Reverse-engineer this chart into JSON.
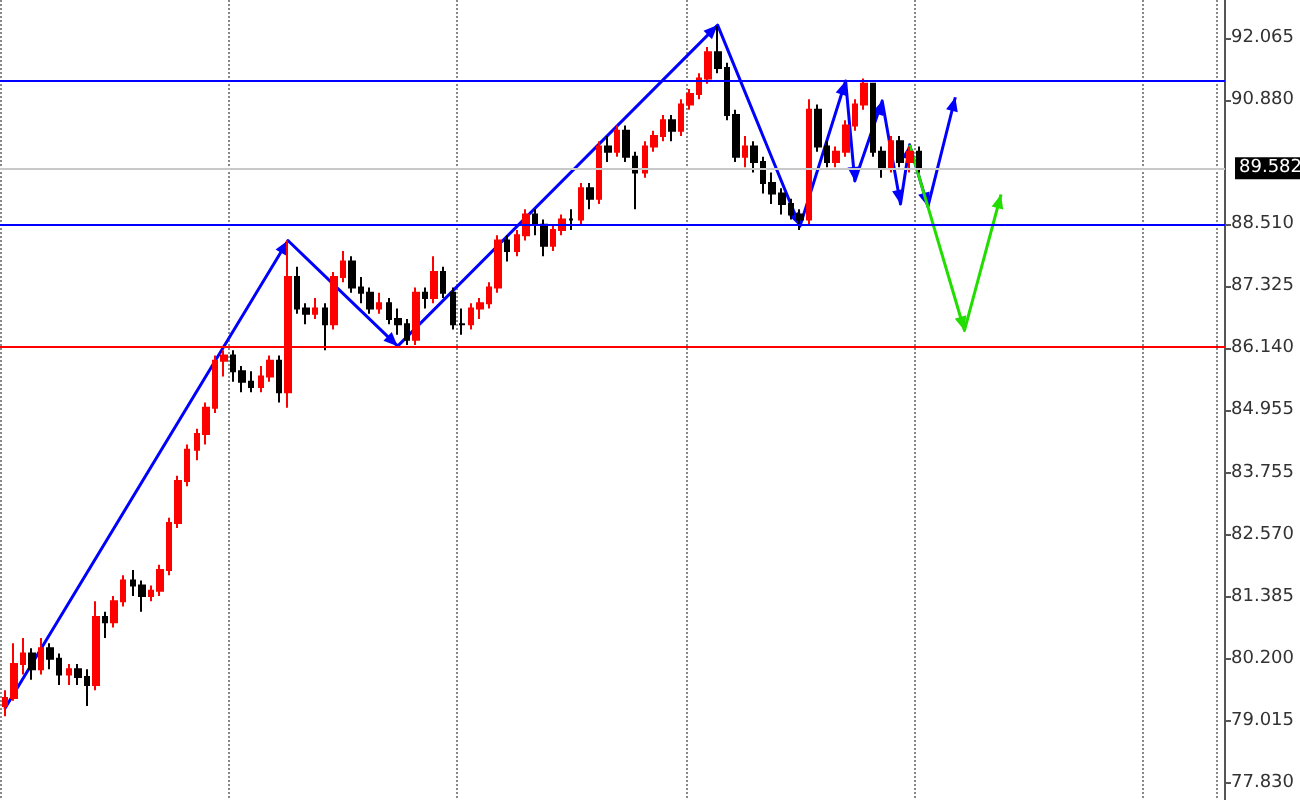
{
  "chart_data": {
    "type": "candlestick",
    "categories": [
      null,
      null,
      null,
      null,
      null,
      null,
      null,
      null,
      null,
      null,
      null,
      null,
      null,
      null,
      null,
      null,
      null,
      null,
      null,
      null,
      null,
      null,
      null,
      null,
      null,
      null,
      null,
      null,
      null,
      null,
      null,
      null,
      null,
      null,
      null,
      null,
      null,
      null,
      null,
      null,
      null,
      null,
      null,
      null,
      null,
      null,
      null,
      null,
      null,
      null,
      null,
      null,
      null,
      null,
      null,
      null,
      null,
      null,
      null,
      null,
      null,
      null,
      null,
      null,
      null,
      null,
      null,
      null,
      null,
      null,
      null,
      null,
      null,
      null,
      null,
      null,
      null,
      null,
      null,
      null,
      null,
      null,
      null,
      null,
      null,
      null,
      null,
      null,
      null,
      null,
      null,
      null,
      null,
      null,
      null,
      null,
      null,
      null,
      null,
      null,
      null,
      null,
      null,
      null,
      null,
      null,
      null,
      null,
      null,
      null,
      null,
      null,
      null,
      null,
      null,
      null,
      null,
      null,
      null,
      null,
      null,
      null,
      null,
      null,
      null,
      null,
      null,
      null,
      null,
      null,
      null,
      null,
      null,
      null
    ],
    "ohlc": [
      [
        79.3,
        79.6,
        79.1,
        79.45
      ],
      [
        79.45,
        80.5,
        79.4,
        80.1
      ],
      [
        80.1,
        80.6,
        79.9,
        80.3
      ],
      [
        80.3,
        80.4,
        79.8,
        80.0
      ],
      [
        80.0,
        80.6,
        79.9,
        80.4
      ],
      [
        80.4,
        80.5,
        80.0,
        80.2
      ],
      [
        80.2,
        80.3,
        79.7,
        79.9
      ],
      [
        79.9,
        80.1,
        79.7,
        80.0
      ],
      [
        80.0,
        80.1,
        79.7,
        79.85
      ],
      [
        79.85,
        80.0,
        79.3,
        79.7
      ],
      [
        79.7,
        81.3,
        79.6,
        81.0
      ],
      [
        81.0,
        81.1,
        80.6,
        80.9
      ],
      [
        80.9,
        81.4,
        80.8,
        81.3
      ],
      [
        81.3,
        81.8,
        81.2,
        81.7
      ],
      [
        81.7,
        81.9,
        81.4,
        81.6
      ],
      [
        81.6,
        81.7,
        81.1,
        81.4
      ],
      [
        81.4,
        81.6,
        81.3,
        81.5
      ],
      [
        81.5,
        82.0,
        81.4,
        81.9
      ],
      [
        81.9,
        82.9,
        81.8,
        82.8
      ],
      [
        82.8,
        83.7,
        82.7,
        83.6
      ],
      [
        83.6,
        84.3,
        83.5,
        84.2
      ],
      [
        84.2,
        84.6,
        84.0,
        84.5
      ],
      [
        84.5,
        85.1,
        84.3,
        85.0
      ],
      [
        85.0,
        86.0,
        84.9,
        85.9
      ],
      [
        85.9,
        86.1,
        85.6,
        86.0
      ],
      [
        86.0,
        86.1,
        85.5,
        85.7
      ],
      [
        85.7,
        85.8,
        85.3,
        85.5
      ],
      [
        85.5,
        85.7,
        85.3,
        85.4
      ],
      [
        85.4,
        85.8,
        85.3,
        85.6
      ],
      [
        85.6,
        86.0,
        85.5,
        85.9
      ],
      [
        85.9,
        86.0,
        85.1,
        85.3
      ],
      [
        85.3,
        88.2,
        85.0,
        87.5
      ],
      [
        87.5,
        87.7,
        86.8,
        86.9
      ],
      [
        86.9,
        87.0,
        86.6,
        86.8
      ],
      [
        86.8,
        87.1,
        86.7,
        86.9
      ],
      [
        86.9,
        87.0,
        86.1,
        86.6
      ],
      [
        86.6,
        87.6,
        86.5,
        87.5
      ],
      [
        87.5,
        88.0,
        87.4,
        87.8
      ],
      [
        87.8,
        87.9,
        87.2,
        87.3
      ],
      [
        87.3,
        87.5,
        87.0,
        87.2
      ],
      [
        87.2,
        87.3,
        86.8,
        86.9
      ],
      [
        86.9,
        87.2,
        86.8,
        87.0
      ],
      [
        87.0,
        87.1,
        86.6,
        86.7
      ],
      [
        86.7,
        86.9,
        86.4,
        86.6
      ],
      [
        86.6,
        86.7,
        86.2,
        86.3
      ],
      [
        86.3,
        87.3,
        86.2,
        87.2
      ],
      [
        87.2,
        87.3,
        86.9,
        87.1
      ],
      [
        87.1,
        87.9,
        87.0,
        87.6
      ],
      [
        87.6,
        87.7,
        87.1,
        87.2
      ],
      [
        87.2,
        87.3,
        86.5,
        86.6
      ],
      [
        86.6,
        86.9,
        86.4,
        86.6
      ],
      [
        86.6,
        87.0,
        86.5,
        86.9
      ],
      [
        86.9,
        87.1,
        86.7,
        87.0
      ],
      [
        87.0,
        87.4,
        86.9,
        87.3
      ],
      [
        87.3,
        88.3,
        87.2,
        88.2
      ],
      [
        88.2,
        88.3,
        87.8,
        88.0
      ],
      [
        88.0,
        88.4,
        87.9,
        88.3
      ],
      [
        88.3,
        88.8,
        88.2,
        88.7
      ],
      [
        88.7,
        88.8,
        88.3,
        88.5
      ],
      [
        88.5,
        88.6,
        87.9,
        88.1
      ],
      [
        88.1,
        88.5,
        88.0,
        88.4
      ],
      [
        88.4,
        88.7,
        88.3,
        88.6
      ],
      [
        88.6,
        88.8,
        88.4,
        88.6
      ],
      [
        88.6,
        89.3,
        88.5,
        89.2
      ],
      [
        89.2,
        89.3,
        88.8,
        89.0
      ],
      [
        89.0,
        90.1,
        88.9,
        90.0
      ],
      [
        90.0,
        90.2,
        89.7,
        89.9
      ],
      [
        89.9,
        90.4,
        89.8,
        90.3
      ],
      [
        90.3,
        90.4,
        89.7,
        89.8
      ],
      [
        89.8,
        89.9,
        88.8,
        89.5
      ],
      [
        89.5,
        90.1,
        89.4,
        90.0
      ],
      [
        90.0,
        90.3,
        89.9,
        90.2
      ],
      [
        90.2,
        90.6,
        90.1,
        90.5
      ],
      [
        90.5,
        90.6,
        90.1,
        90.3
      ],
      [
        90.3,
        90.9,
        90.2,
        90.8
      ],
      [
        90.8,
        91.1,
        90.7,
        91.0
      ],
      [
        91.0,
        91.4,
        90.9,
        91.3
      ],
      [
        91.3,
        91.9,
        91.2,
        91.8
      ],
      [
        91.8,
        92.3,
        91.4,
        91.5
      ],
      [
        91.5,
        91.6,
        90.5,
        90.6
      ],
      [
        90.6,
        90.7,
        89.7,
        89.8
      ],
      [
        89.8,
        90.2,
        89.6,
        90.0
      ],
      [
        90.0,
        90.1,
        89.5,
        89.7
      ],
      [
        89.7,
        89.8,
        89.1,
        89.3
      ],
      [
        89.3,
        89.5,
        88.9,
        89.1
      ],
      [
        89.1,
        89.2,
        88.7,
        88.9
      ],
      [
        88.9,
        89.0,
        88.6,
        88.7
      ],
      [
        88.7,
        88.8,
        88.4,
        88.6
      ],
      [
        88.6,
        90.9,
        88.5,
        90.7
      ],
      [
        90.7,
        90.8,
        89.9,
        90.0
      ],
      [
        90.0,
        90.1,
        89.6,
        89.7
      ],
      [
        89.7,
        90.0,
        89.6,
        89.9
      ],
      [
        89.9,
        90.5,
        89.8,
        90.4
      ],
      [
        90.4,
        90.9,
        90.3,
        90.8
      ],
      [
        90.8,
        91.3,
        90.7,
        91.2
      ],
      [
        91.2,
        91.2,
        89.8,
        89.9
      ],
      [
        89.9,
        90.0,
        89.4,
        89.6
      ],
      [
        89.6,
        90.2,
        89.5,
        90.1
      ],
      [
        90.1,
        90.2,
        89.6,
        89.7
      ],
      [
        89.7,
        90.0,
        89.5,
        89.9
      ],
      [
        89.9,
        90.0,
        89.5,
        89.58
      ],
      null,
      null,
      null,
      null,
      null,
      null,
      null,
      null,
      null,
      null,
      null,
      null,
      null,
      null,
      null,
      null,
      null,
      null,
      null,
      null,
      null,
      null,
      null,
      null,
      null,
      null,
      null,
      null,
      null,
      null,
      null,
      null,
      null
    ],
    "colors": [
      "#ff0000",
      "#ff0000",
      "#ff0000",
      "#000000",
      "#ff0000",
      "#000000",
      "#000000",
      "#ff0000",
      "#000000",
      "#000000",
      "#ff0000",
      "#000000",
      "#ff0000",
      "#ff0000",
      "#000000",
      "#000000",
      "#ff0000",
      "#ff0000",
      "#ff0000",
      "#ff0000",
      "#ff0000",
      "#ff0000",
      "#ff0000",
      "#ff0000",
      "#ff0000",
      "#000000",
      "#000000",
      "#000000",
      "#ff0000",
      "#ff0000",
      "#000000",
      "#ff0000",
      "#000000",
      "#000000",
      "#ff0000",
      "#000000",
      "#ff0000",
      "#ff0000",
      "#000000",
      "#000000",
      "#000000",
      "#ff0000",
      "#000000",
      "#000000",
      "#000000",
      "#ff0000",
      "#000000",
      "#ff0000",
      "#000000",
      "#000000",
      "#000000",
      "#ff0000",
      "#ff0000",
      "#ff0000",
      "#ff0000",
      "#000000",
      "#ff0000",
      "#ff0000",
      "#000000",
      "#000000",
      "#ff0000",
      "#ff0000",
      "#000000",
      "#ff0000",
      "#000000",
      "#ff0000",
      "#000000",
      "#ff0000",
      "#000000",
      "#000000",
      "#ff0000",
      "#ff0000",
      "#ff0000",
      "#000000",
      "#ff0000",
      "#ff0000",
      "#ff0000",
      "#ff0000",
      "#000000",
      "#000000",
      "#000000",
      "#ff0000",
      "#000000",
      "#000000",
      "#000000",
      "#000000",
      "#000000",
      "#000000",
      "#ff0000",
      "#000000",
      "#000000",
      "#ff0000",
      "#ff0000",
      "#ff0000",
      "#ff0000",
      "#000000",
      "#000000",
      "#ff0000",
      "#000000",
      "#ff0000",
      "#000000",
      null,
      null,
      null,
      null,
      null,
      null,
      null,
      null,
      null,
      null,
      null,
      null,
      null,
      null,
      null,
      null,
      null,
      null,
      null,
      null,
      null,
      null,
      null,
      null,
      null,
      null,
      null,
      null,
      null,
      null,
      null,
      null,
      null
    ],
    "series": [
      {
        "type": "line",
        "color": "#0000ff",
        "values": [
          79.24,
          null,
          null,
          null,
          null,
          null,
          null,
          null,
          null,
          null,
          null,
          null,
          null,
          null,
          null,
          null,
          null,
          null,
          null,
          null,
          null,
          null,
          null,
          null,
          null,
          null,
          null,
          null,
          null,
          null,
          null,
          88.2,
          null,
          null,
          null,
          null,
          null,
          null,
          null,
          null,
          null,
          null,
          null,
          86.18,
          null,
          null,
          null,
          null,
          null,
          null,
          null,
          null,
          null,
          null,
          null,
          null,
          null,
          null,
          null,
          null,
          null,
          null,
          null,
          null,
          null,
          null,
          null,
          null,
          null,
          null,
          null,
          null,
          null,
          null,
          null,
          null,
          null,
          null,
          92.32,
          null,
          null,
          null,
          null,
          null,
          null,
          null,
          null,
          88.47,
          null,
          null,
          null,
          null,
          91.25,
          89.34,
          null,
          null,
          90.87,
          null,
          88.9,
          90.03,
          null,
          88.85,
          null,
          null,
          90.94,
          null,
          null,
          null,
          null,
          null,
          null,
          null,
          null,
          null,
          null,
          null,
          null,
          null,
          null,
          null,
          null,
          null,
          null,
          null,
          null,
          null,
          null,
          null,
          null,
          null,
          null,
          null,
          null,
          null
        ]
      },
      {
        "type": "line",
        "color": "#22dd00",
        "values": [
          null,
          null,
          null,
          null,
          null,
          null,
          null,
          null,
          null,
          null,
          null,
          null,
          null,
          null,
          null,
          null,
          null,
          null,
          null,
          null,
          null,
          null,
          null,
          null,
          null,
          null,
          null,
          null,
          null,
          null,
          null,
          null,
          null,
          null,
          null,
          null,
          null,
          null,
          null,
          null,
          null,
          null,
          null,
          null,
          null,
          null,
          null,
          null,
          null,
          null,
          null,
          null,
          null,
          null,
          null,
          null,
          null,
          null,
          null,
          null,
          null,
          null,
          null,
          null,
          null,
          null,
          null,
          null,
          null,
          null,
          null,
          null,
          null,
          null,
          null,
          null,
          null,
          null,
          null,
          null,
          null,
          null,
          null,
          null,
          null,
          null,
          null,
          null,
          null,
          null,
          null,
          null,
          null,
          null,
          null,
          null,
          null,
          null,
          null,
          90.03,
          null,
          null,
          null,
          null,
          null,
          86.48,
          null,
          null,
          null,
          89.08,
          null,
          null,
          null,
          null,
          null,
          null,
          null,
          null,
          null,
          null,
          null,
          null,
          null,
          null,
          null,
          null,
          null,
          null,
          null,
          null,
          null,
          null,
          null,
          null
        ]
      }
    ],
    "ylim": [
      77.5,
      92.8
    ],
    "yticks": [
      {
        "value": 77.83,
        "label": "77.830"
      },
      79.015,
      {
        "value": 80.2,
        "label": "80.200"
      },
      81.385,
      {
        "value": 82.57,
        "label": "82.570"
      },
      83.755,
      84.955,
      {
        "value": 86.14,
        "label": "86.140"
      },
      87.325,
      {
        "value": 88.51,
        "label": "88.510"
      },
      {
        "value": 90.88,
        "label": "90.880"
      },
      92.065
    ],
    "ref_lines": [
      {
        "axis": "y",
        "value": 89.582,
        "label": "89.582",
        "color": "#c8c8c8"
      },
      {
        "axis": "y",
        "value": 86.18,
        "label": null,
        "color": "#ff0000"
      },
      {
        "axis": "y",
        "value": 91.25,
        "label": null,
        "color": "#0000ff"
      },
      {
        "axis": "y",
        "value": 88.5,
        "label": null,
        "color": "#0000ff"
      }
    ],
    "grid": "x"
  }
}
